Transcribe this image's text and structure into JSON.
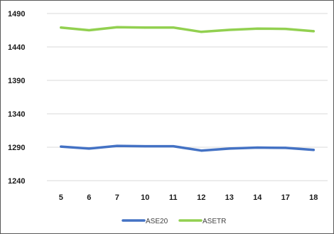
{
  "chart_data": {
    "type": "line",
    "title": "",
    "xlabel": "",
    "ylabel": "",
    "categories": [
      "5",
      "6",
      "7",
      "10",
      "11",
      "12",
      "13",
      "14",
      "17",
      "18"
    ],
    "ylim": [
      1240,
      1490
    ],
    "yticks": [
      1240,
      1290,
      1340,
      1390,
      1440,
      1490
    ],
    "grid": true,
    "legend_position": "bottom",
    "series": [
      {
        "name": "ASE20",
        "color": "#4472c4",
        "values": [
          1291,
          1288,
          1292,
          1291.5,
          1291.5,
          1285,
          1288,
          1289.5,
          1289,
          1286
        ]
      },
      {
        "name": "ASETR",
        "color": "#92d050",
        "values": [
          1469,
          1465,
          1469.5,
          1469,
          1469,
          1462.5,
          1465.5,
          1467.5,
          1467,
          1463.5
        ]
      }
    ]
  }
}
